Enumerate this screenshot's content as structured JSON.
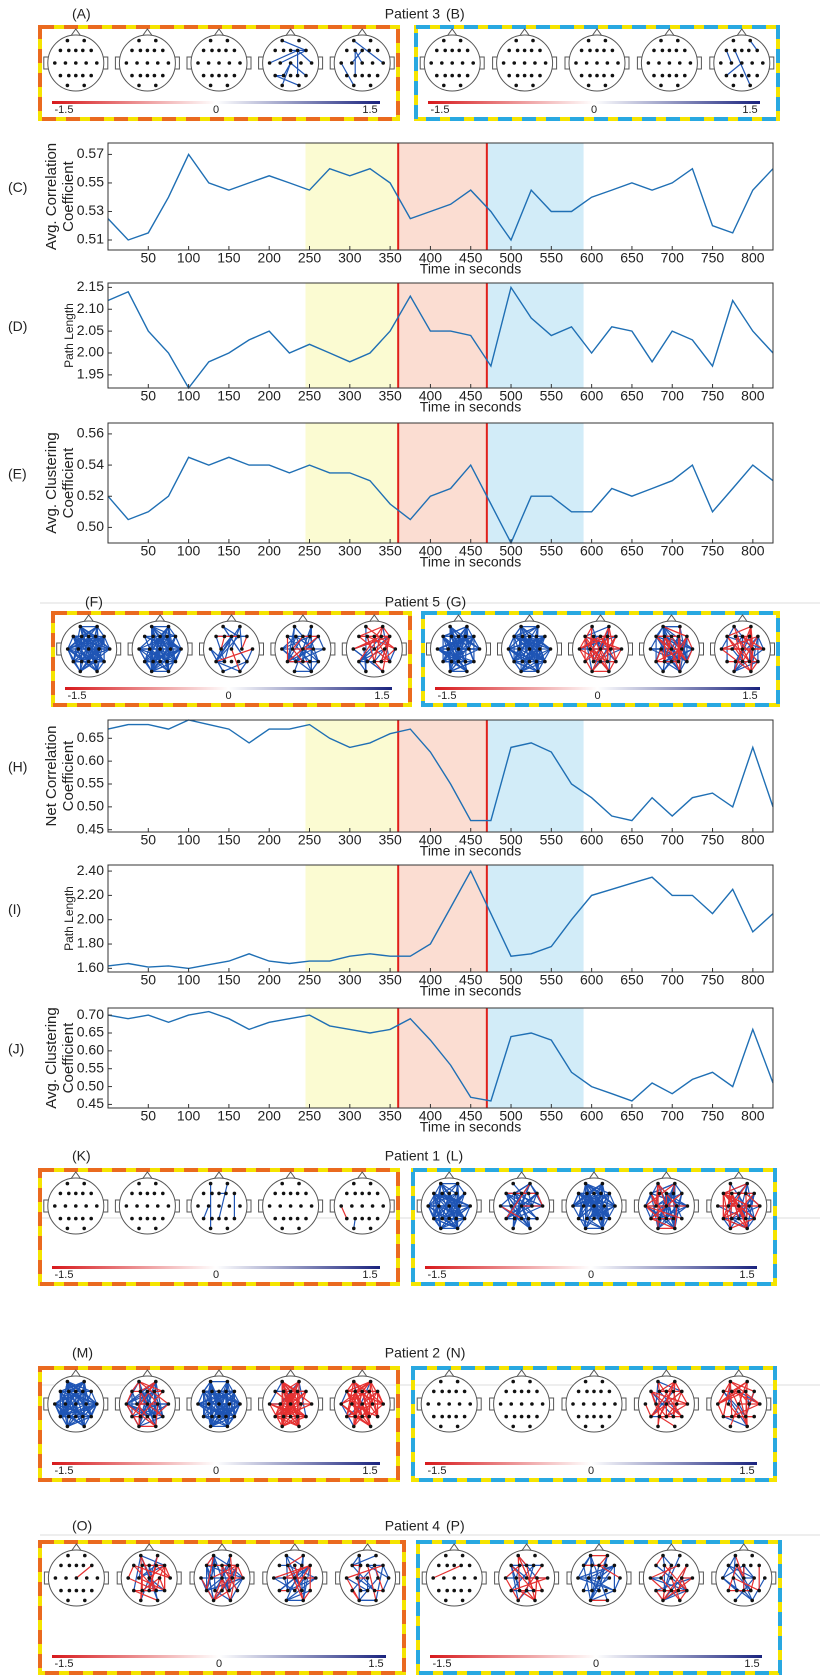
{
  "head_panels": {
    "colorbar_ticks": [
      -1.5,
      0,
      1.5
    ],
    "rows": [
      {
        "title": "Patient 3",
        "left": {
          "label": "(A)",
          "heads": [
            {
              "blue": 0,
              "red": 0
            },
            {
              "blue": 0,
              "red": 0
            },
            {
              "blue": 0,
              "red": 0
            },
            {
              "blue": 12,
              "red": 0
            },
            {
              "blue": 5,
              "red": 0
            }
          ]
        },
        "right": {
          "label": "(B)",
          "heads": [
            {
              "blue": 0,
              "red": 0
            },
            {
              "blue": 0,
              "red": 0
            },
            {
              "blue": 0,
              "red": 0
            },
            {
              "blue": 0,
              "red": 0
            },
            {
              "blue": 4,
              "red": 0
            }
          ]
        }
      },
      {
        "title": "Patient 5",
        "left": {
          "label": "(F)",
          "heads": [
            {
              "blue": 120,
              "red": 0
            },
            {
              "blue": 120,
              "red": 0
            },
            {
              "blue": 25,
              "red": 5
            },
            {
              "blue": 40,
              "red": 8
            },
            {
              "blue": 20,
              "red": 25
            }
          ]
        },
        "right": {
          "label": "(G)",
          "heads": [
            {
              "blue": 120,
              "red": 0
            },
            {
              "blue": 120,
              "red": 0
            },
            {
              "blue": 30,
              "red": 40
            },
            {
              "blue": 60,
              "red": 30
            },
            {
              "blue": 25,
              "red": 30
            }
          ]
        }
      },
      {
        "title": "Patient 1",
        "left": {
          "label": "(K)",
          "heads": [
            {
              "blue": 0,
              "red": 0
            },
            {
              "blue": 0,
              "red": 0
            },
            {
              "blue": 5,
              "red": 0
            },
            {
              "blue": 0,
              "red": 0
            },
            {
              "blue": 1,
              "red": 1
            }
          ]
        },
        "right": {
          "label": "(L)",
          "heads": [
            {
              "blue": 100,
              "red": 0
            },
            {
              "blue": 60,
              "red": 5
            },
            {
              "blue": 100,
              "red": 0
            },
            {
              "blue": 60,
              "red": 20
            },
            {
              "blue": 40,
              "red": 40
            }
          ]
        }
      },
      {
        "title": "Patient 2",
        "left": {
          "label": "(M)",
          "heads": [
            {
              "blue": 120,
              "red": 0
            },
            {
              "blue": 50,
              "red": 30
            },
            {
              "blue": 120,
              "red": 0
            },
            {
              "blue": 20,
              "red": 80
            },
            {
              "blue": 5,
              "red": 80
            }
          ]
        },
        "right": {
          "label": "(N)",
          "heads": [
            {
              "blue": 0,
              "red": 0
            },
            {
              "blue": 0,
              "red": 0
            },
            {
              "blue": 0,
              "red": 0
            },
            {
              "blue": 10,
              "red": 30
            },
            {
              "blue": 10,
              "red": 30
            }
          ]
        }
      },
      {
        "title": "Patient 4",
        "left": {
          "label": "(O)",
          "heads": [
            {
              "blue": 0,
              "red": 1
            },
            {
              "blue": 15,
              "red": 25
            },
            {
              "blue": 50,
              "red": 20
            },
            {
              "blue": 30,
              "red": 15
            },
            {
              "blue": 20,
              "red": 10
            }
          ]
        },
        "right": {
          "label": "(P)",
          "heads": [
            {
              "blue": 0,
              "red": 1
            },
            {
              "blue": 15,
              "red": 20
            },
            {
              "blue": 30,
              "red": 5
            },
            {
              "blue": 20,
              "red": 20
            },
            {
              "blue": 20,
              "red": 10
            }
          ]
        }
      }
    ]
  },
  "chart_data": [
    {
      "type": "line",
      "panel": "(C)",
      "ylabel": [
        "Avg. Correlation",
        "Coefficient"
      ],
      "xlabel": "Time in seconds",
      "color": "#1f6fb4",
      "x": [
        0,
        25,
        50,
        75,
        100,
        125,
        150,
        175,
        200,
        225,
        250,
        275,
        300,
        325,
        350,
        375,
        400,
        425,
        450,
        475,
        500,
        525,
        550,
        575,
        600,
        625,
        650,
        675,
        700,
        725,
        750,
        775,
        800,
        825
      ],
      "values": [
        0.525,
        0.51,
        0.515,
        0.54,
        0.57,
        0.55,
        0.545,
        0.55,
        0.555,
        0.55,
        0.545,
        0.56,
        0.555,
        0.56,
        0.55,
        0.525,
        0.53,
        0.535,
        0.545,
        0.53,
        0.51,
        0.545,
        0.53,
        0.53,
        0.54,
        0.545,
        0.55,
        0.545,
        0.55,
        0.56,
        0.52,
        0.515,
        0.545,
        0.56
      ],
      "xlim": [
        0,
        825
      ],
      "ylim": [
        0.503,
        0.578
      ],
      "xticks": [
        50,
        100,
        150,
        200,
        250,
        300,
        350,
        400,
        450,
        500,
        550,
        600,
        650,
        700,
        750,
        800
      ],
      "yticks": [
        0.51,
        0.53,
        0.55,
        0.57
      ],
      "regions": [
        {
          "start": 245,
          "end": 360,
          "color": "#fbfbd2"
        },
        {
          "start": 360,
          "end": 470,
          "color": "#fbddd2"
        },
        {
          "start": 470,
          "end": 590,
          "color": "#d2ecf8"
        }
      ],
      "vlines": [
        360,
        470
      ],
      "vline_color": "#e0201b"
    },
    {
      "type": "line",
      "panel": "(D)",
      "ylabel": [
        "Path Length"
      ],
      "xlabel": "Time in seconds",
      "color": "#1f6fb4",
      "x": [
        0,
        25,
        50,
        75,
        100,
        125,
        150,
        175,
        200,
        225,
        250,
        275,
        300,
        325,
        350,
        375,
        400,
        425,
        450,
        475,
        500,
        525,
        550,
        575,
        600,
        625,
        650,
        675,
        700,
        725,
        750,
        775,
        800,
        825
      ],
      "values": [
        2.12,
        2.14,
        2.05,
        2.0,
        1.92,
        1.98,
        2.0,
        2.03,
        2.05,
        2.0,
        2.02,
        2.0,
        1.98,
        2.0,
        2.05,
        2.13,
        2.05,
        2.05,
        2.04,
        1.97,
        2.15,
        2.08,
        2.04,
        2.06,
        2.0,
        2.06,
        2.05,
        1.98,
        2.05,
        2.03,
        1.97,
        2.12,
        2.05,
        2.0
      ],
      "xlim": [
        0,
        825
      ],
      "ylim": [
        1.92,
        2.16
      ],
      "xticks": [
        50,
        100,
        150,
        200,
        250,
        300,
        350,
        400,
        450,
        500,
        550,
        600,
        650,
        700,
        750,
        800
      ],
      "yticks": [
        2.15,
        {
          "value": 2.1,
          "label": "2.10"
        },
        2.05,
        {
          "value": 2.0,
          "label": "2.00"
        },
        1.95
      ],
      "regions": [
        {
          "start": 245,
          "end": 360,
          "color": "#fbfbd2"
        },
        {
          "start": 360,
          "end": 470,
          "color": "#fbddd2"
        },
        {
          "start": 470,
          "end": 590,
          "color": "#d2ecf8"
        }
      ],
      "vlines": [
        360,
        470
      ],
      "vline_color": "#e0201b"
    },
    {
      "type": "line",
      "panel": "(E)",
      "ylabel": [
        "Avg. Clustering",
        "Coefficient"
      ],
      "xlabel": "Time in seconds",
      "color": "#1f6fb4",
      "x": [
        0,
        25,
        50,
        75,
        100,
        125,
        150,
        175,
        200,
        225,
        250,
        275,
        300,
        325,
        350,
        375,
        400,
        425,
        450,
        475,
        500,
        525,
        550,
        575,
        600,
        625,
        650,
        675,
        700,
        725,
        750,
        775,
        800,
        825
      ],
      "values": [
        0.52,
        0.505,
        0.51,
        0.52,
        0.545,
        0.54,
        0.545,
        0.54,
        0.54,
        0.535,
        0.54,
        0.535,
        0.535,
        0.53,
        0.515,
        0.505,
        0.52,
        0.525,
        0.54,
        0.515,
        0.49,
        0.52,
        0.52,
        0.51,
        0.51,
        0.525,
        0.52,
        0.525,
        0.53,
        0.54,
        0.51,
        0.525,
        0.54,
        0.53
      ],
      "xlim": [
        0,
        825
      ],
      "ylim": [
        0.49,
        0.567
      ],
      "xticks": [
        50,
        100,
        150,
        200,
        250,
        300,
        350,
        400,
        450,
        500,
        550,
        600,
        650,
        700,
        750,
        800
      ],
      "yticks": [
        {
          "value": 0.5,
          "label": "0.50"
        },
        0.52,
        0.54,
        0.56
      ],
      "regions": [
        {
          "start": 245,
          "end": 360,
          "color": "#fbfbd2"
        },
        {
          "start": 360,
          "end": 470,
          "color": "#fbddd2"
        },
        {
          "start": 470,
          "end": 590,
          "color": "#d2ecf8"
        }
      ],
      "vlines": [
        360,
        470
      ],
      "vline_color": "#e0201b"
    },
    {
      "type": "line",
      "panel": "(H)",
      "ylabel": [
        "Net Correlation",
        "Coefficient"
      ],
      "xlabel": "Time in seconds",
      "color": "#1f6fb4",
      "x": [
        0,
        25,
        50,
        75,
        100,
        125,
        150,
        175,
        200,
        225,
        250,
        275,
        300,
        325,
        350,
        375,
        400,
        425,
        450,
        475,
        500,
        525,
        550,
        575,
        600,
        625,
        650,
        675,
        700,
        725,
        750,
        775,
        800,
        825
      ],
      "values": [
        0.67,
        0.68,
        0.68,
        0.67,
        0.69,
        0.68,
        0.67,
        0.64,
        0.67,
        0.67,
        0.68,
        0.65,
        0.63,
        0.64,
        0.66,
        0.67,
        0.62,
        0.55,
        0.47,
        0.47,
        0.63,
        0.64,
        0.62,
        0.55,
        0.52,
        0.48,
        0.47,
        0.52,
        0.48,
        0.52,
        0.53,
        0.5,
        0.63,
        0.5
      ],
      "xlim": [
        0,
        825
      ],
      "ylim": [
        0.445,
        0.69
      ],
      "xticks": [
        50,
        100,
        150,
        200,
        250,
        300,
        350,
        400,
        450,
        500,
        550,
        600,
        650,
        700,
        750,
        800
      ],
      "yticks": [
        0.45,
        {
          "value": 0.5,
          "label": "0.50"
        },
        0.55,
        {
          "value": 0.6,
          "label": "0.60"
        },
        0.65
      ],
      "regions": [
        {
          "start": 245,
          "end": 360,
          "color": "#fbfbd2"
        },
        {
          "start": 360,
          "end": 470,
          "color": "#fbddd2"
        },
        {
          "start": 470,
          "end": 590,
          "color": "#d2ecf8"
        }
      ],
      "vlines": [
        360,
        470
      ],
      "vline_color": "#e0201b"
    },
    {
      "type": "line",
      "panel": "(I)",
      "ylabel": [
        "Path Length"
      ],
      "xlabel": "Time in seconds",
      "color": "#1f6fb4",
      "x": [
        0,
        25,
        50,
        75,
        100,
        125,
        150,
        175,
        200,
        225,
        250,
        275,
        300,
        325,
        350,
        375,
        400,
        425,
        450,
        475,
        500,
        525,
        550,
        575,
        600,
        625,
        650,
        675,
        700,
        725,
        750,
        775,
        800,
        825
      ],
      "values": [
        1.62,
        1.64,
        1.61,
        1.62,
        1.6,
        1.63,
        1.66,
        1.72,
        1.66,
        1.64,
        1.66,
        1.66,
        1.7,
        1.72,
        1.7,
        1.7,
        1.8,
        2.1,
        2.4,
        2.05,
        1.7,
        1.72,
        1.78,
        2.0,
        2.2,
        2.25,
        2.3,
        2.35,
        2.2,
        2.2,
        2.05,
        2.25,
        1.9,
        2.05
      ],
      "xlim": [
        0,
        825
      ],
      "ylim": [
        1.57,
        2.45
      ],
      "xticks": [
        50,
        100,
        150,
        200,
        250,
        300,
        350,
        400,
        450,
        500,
        550,
        600,
        650,
        700,
        750,
        800
      ],
      "yticks": [
        {
          "value": 1.6,
          "label": "1.60"
        },
        {
          "value": 1.8,
          "label": "1.80"
        },
        {
          "value": 2.0,
          "label": "2.00"
        },
        {
          "value": 2.2,
          "label": "2.20"
        },
        {
          "value": 2.4,
          "label": "2.40"
        }
      ],
      "regions": [
        {
          "start": 245,
          "end": 360,
          "color": "#fbfbd2"
        },
        {
          "start": 360,
          "end": 470,
          "color": "#fbddd2"
        },
        {
          "start": 470,
          "end": 590,
          "color": "#d2ecf8"
        }
      ],
      "vlines": [
        360,
        470
      ],
      "vline_color": "#e0201b"
    },
    {
      "type": "line",
      "panel": "(J)",
      "ylabel": [
        "Avg. Clustering",
        "Coefficient"
      ],
      "xlabel": "Time in seconds",
      "color": "#1f6fb4",
      "x": [
        0,
        25,
        50,
        75,
        100,
        125,
        150,
        175,
        200,
        225,
        250,
        275,
        300,
        325,
        350,
        375,
        400,
        425,
        450,
        475,
        500,
        525,
        550,
        575,
        600,
        625,
        650,
        675,
        700,
        725,
        750,
        775,
        800,
        825
      ],
      "values": [
        0.7,
        0.69,
        0.7,
        0.68,
        0.7,
        0.71,
        0.69,
        0.66,
        0.68,
        0.69,
        0.7,
        0.67,
        0.66,
        0.65,
        0.66,
        0.69,
        0.63,
        0.56,
        0.47,
        0.46,
        0.64,
        0.65,
        0.63,
        0.54,
        0.5,
        0.48,
        0.46,
        0.51,
        0.48,
        0.52,
        0.54,
        0.5,
        0.66,
        0.51
      ],
      "xlim": [
        0,
        825
      ],
      "ylim": [
        0.44,
        0.72
      ],
      "xticks": [
        50,
        100,
        150,
        200,
        250,
        300,
        350,
        400,
        450,
        500,
        550,
        600,
        650,
        700,
        750,
        800
      ],
      "yticks": [
        0.45,
        {
          "value": 0.5,
          "label": "0.50"
        },
        0.55,
        {
          "value": 0.6,
          "label": "0.60"
        },
        0.65,
        {
          "value": 0.7,
          "label": "0.70"
        }
      ],
      "regions": [
        {
          "start": 245,
          "end": 360,
          "color": "#fbfbd2"
        },
        {
          "start": 360,
          "end": 470,
          "color": "#fbddd2"
        },
        {
          "start": 470,
          "end": 590,
          "color": "#d2ecf8"
        }
      ],
      "vlines": [
        360,
        470
      ],
      "vline_color": "#e0201b"
    }
  ]
}
